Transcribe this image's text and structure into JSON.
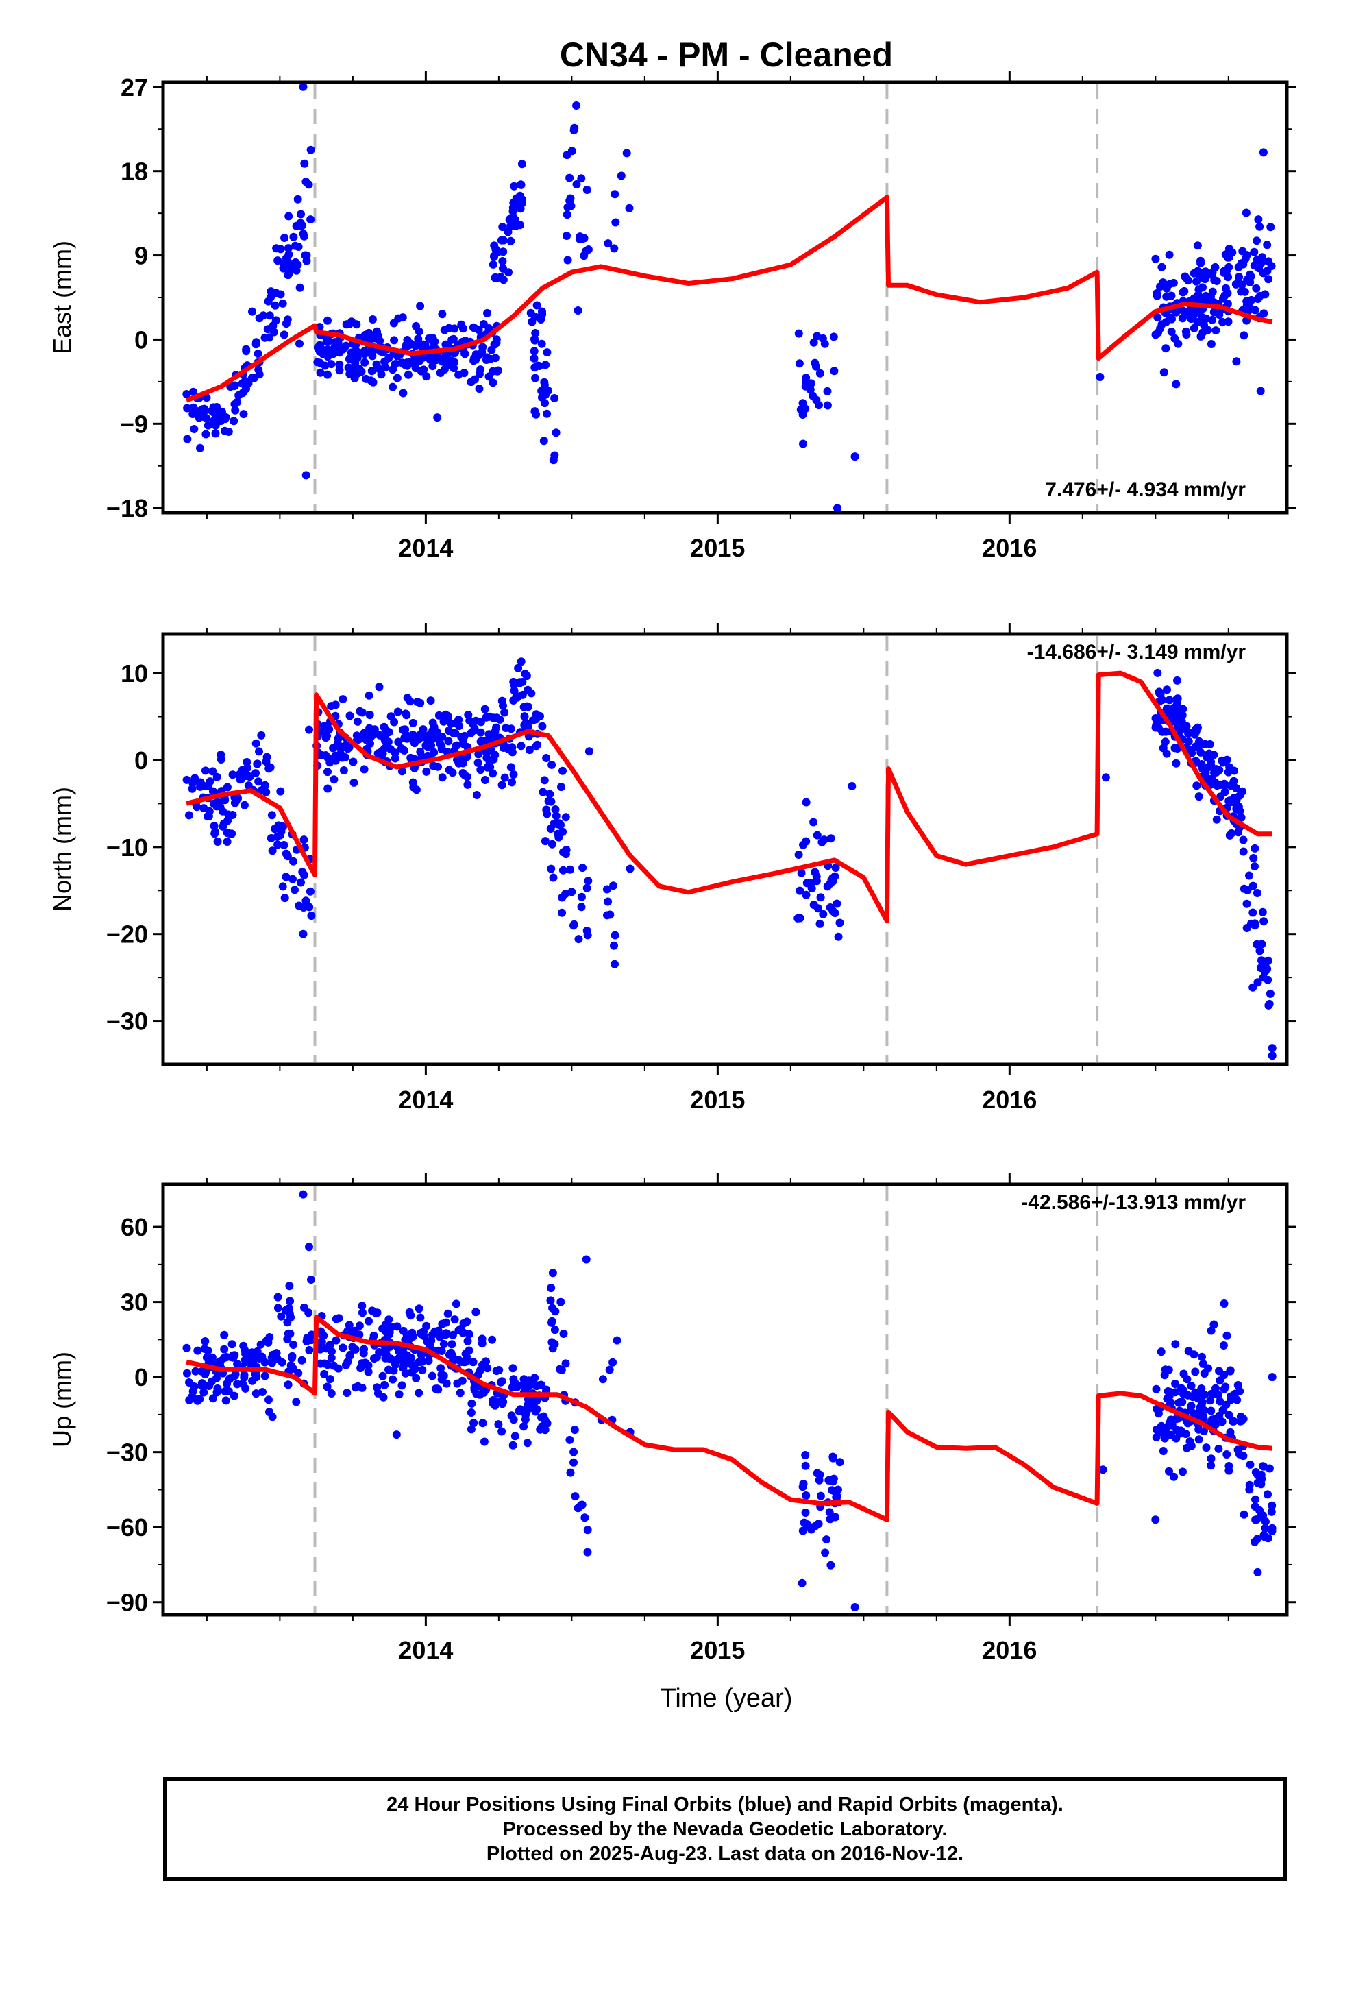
{
  "title": "CN34  - PM - Cleaned",
  "x_axis_label": "Time (year)",
  "footer": {
    "line1": "24 Hour Positions Using Final Orbits (blue) and Rapid Orbits (magenta).",
    "line2": "Processed by the Nevada Geodetic Laboratory.",
    "line3": "Plotted on 2025-Aug-23. Last data on 2016-Nov-12."
  },
  "colors": {
    "data_points": "#0000ff",
    "model_fit": "#ff0000",
    "event_lines": "#bbbbbb",
    "frame": "#000000"
  },
  "chart_data": [
    {
      "type": "scatter",
      "ylabel": "East (mm)",
      "rate_label": "7.476+/- 4.934 mm/yr",
      "xlim": [
        2013.1,
        2016.95
      ],
      "ylim": [
        -18.5,
        27.5
      ],
      "yticks": [
        27,
        18,
        9,
        0,
        -9,
        -18
      ],
      "xticks": [
        2014,
        2015,
        2016
      ],
      "event_lines": [
        2013.62,
        2015.58,
        2016.3
      ],
      "grid": false,
      "model_series": {
        "name": "model",
        "points": [
          [
            2013.18,
            -6.5
          ],
          [
            2013.3,
            -5
          ],
          [
            2013.42,
            -2.5
          ],
          [
            2013.54,
            0
          ],
          [
            2013.62,
            1.5
          ],
          [
            2013.625,
            0.8
          ],
          [
            2013.7,
            0.5
          ],
          [
            2013.8,
            -0.5
          ],
          [
            2013.95,
            -1.5
          ],
          [
            2014.1,
            -1
          ],
          [
            2014.2,
            0
          ],
          [
            2014.3,
            2.5
          ],
          [
            2014.4,
            5.5
          ],
          [
            2014.5,
            7.2
          ],
          [
            2014.6,
            7.8
          ],
          [
            2014.75,
            6.8
          ],
          [
            2014.9,
            6
          ],
          [
            2015.05,
            6.5
          ],
          [
            2015.25,
            8
          ],
          [
            2015.4,
            11
          ],
          [
            2015.58,
            15.2
          ],
          [
            2015.585,
            5.8
          ],
          [
            2015.65,
            5.8
          ],
          [
            2015.75,
            4.8
          ],
          [
            2015.9,
            4
          ],
          [
            2016.05,
            4.5
          ],
          [
            2016.2,
            5.5
          ],
          [
            2016.3,
            7.2
          ],
          [
            2016.305,
            -2
          ],
          [
            2016.4,
            0.5
          ],
          [
            2016.5,
            3
          ],
          [
            2016.6,
            3.8
          ],
          [
            2016.72,
            3.5
          ],
          [
            2016.85,
            2.2
          ],
          [
            2016.9,
            1.9
          ]
        ]
      },
      "data_series": [
        {
          "t0": 2013.18,
          "t1": 2013.33,
          "n": 40,
          "c0": -7,
          "c1": -9,
          "s": 1.3
        },
        {
          "t0": 2013.33,
          "t1": 2013.46,
          "n": 35,
          "c0": -7,
          "c1": 1,
          "s": 1.8
        },
        {
          "t0": 2013.46,
          "t1": 2013.61,
          "n": 55,
          "c0": 3,
          "c1": 14,
          "s": 2.8
        },
        {
          "t0": 2013.625,
          "t1": 2014.25,
          "n": 240,
          "c0": -1,
          "c1": -1.3,
          "s": 1.7
        },
        {
          "t0": 2014.23,
          "t1": 2014.33,
          "n": 45,
          "c0": 8,
          "c1": 15,
          "s": 1.8
        },
        {
          "t0": 2014.35,
          "t1": 2014.45,
          "n": 35,
          "c0": 1,
          "c1": -8,
          "s": 3.5
        },
        {
          "t0": 2014.48,
          "t1": 2014.52,
          "n": 14,
          "c0": 12,
          "c1": 22,
          "s": 3.5
        },
        {
          "t0": 2014.5,
          "t1": 2014.56,
          "n": 10,
          "c0": 8,
          "c1": 12,
          "s": 3
        },
        {
          "t0": 2014.6,
          "t1": 2014.7,
          "n": 6,
          "c0": 5,
          "c1": 18,
          "s": 4
        },
        {
          "t0": 2015.27,
          "t1": 2015.4,
          "n": 26,
          "c0": -6,
          "c1": -4,
          "s": 4
        },
        {
          "t0": 2016.31,
          "t1": 2016.32,
          "n": 1,
          "c0": -4,
          "c1": -4,
          "s": 0
        },
        {
          "t0": 2016.5,
          "t1": 2016.9,
          "n": 180,
          "c0": 2.5,
          "c1": 7,
          "s": 2.8
        }
      ],
      "outliers": [
        [
          2013.58,
          27
        ],
        [
          2013.59,
          -14.5
        ],
        [
          2015.41,
          -18
        ],
        [
          2015.47,
          -12.5
        ],
        [
          2014.67,
          17.5
        ],
        [
          2016.87,
          20
        ],
        [
          2016.86,
          -5.5
        ]
      ]
    },
    {
      "type": "scatter",
      "ylabel": "North (mm)",
      "rate_label": "-14.686+/- 3.149 mm/yr",
      "xlim": [
        2013.1,
        2016.95
      ],
      "ylim": [
        -35,
        14.5
      ],
      "yticks": [
        10,
        0,
        -10,
        -20,
        -30
      ],
      "xticks": [
        2014,
        2015,
        2016
      ],
      "event_lines": [
        2013.62,
        2015.58,
        2016.3
      ],
      "grid": false,
      "model_series": {
        "name": "model",
        "points": [
          [
            2013.18,
            -5
          ],
          [
            2013.3,
            -4
          ],
          [
            2013.4,
            -3.5
          ],
          [
            2013.5,
            -5.5
          ],
          [
            2013.6,
            -12
          ],
          [
            2013.62,
            -13.2
          ],
          [
            2013.625,
            7.5
          ],
          [
            2013.7,
            3.5
          ],
          [
            2013.8,
            0.5
          ],
          [
            2013.9,
            -0.8
          ],
          [
            2014.05,
            0.2
          ],
          [
            2014.2,
            1.5
          ],
          [
            2014.35,
            3.3
          ],
          [
            2014.42,
            2.8
          ],
          [
            2014.5,
            -1
          ],
          [
            2014.6,
            -6
          ],
          [
            2014.7,
            -11
          ],
          [
            2014.8,
            -14.5
          ],
          [
            2014.9,
            -15.2
          ],
          [
            2015.05,
            -14
          ],
          [
            2015.2,
            -13
          ],
          [
            2015.4,
            -11.5
          ],
          [
            2015.5,
            -13.5
          ],
          [
            2015.58,
            -18.5
          ],
          [
            2015.585,
            -1
          ],
          [
            2015.65,
            -6
          ],
          [
            2015.75,
            -11
          ],
          [
            2015.85,
            -12
          ],
          [
            2016.0,
            -11
          ],
          [
            2016.15,
            -10
          ],
          [
            2016.3,
            -8.5
          ],
          [
            2016.305,
            9.8
          ],
          [
            2016.38,
            10
          ],
          [
            2016.45,
            9
          ],
          [
            2016.55,
            4
          ],
          [
            2016.65,
            -2
          ],
          [
            2016.75,
            -6.5
          ],
          [
            2016.85,
            -8.5
          ],
          [
            2016.9,
            -8.5
          ]
        ]
      },
      "data_series": [
        {
          "t0": 2013.18,
          "t1": 2013.35,
          "n": 55,
          "c0": -4,
          "c1": -6,
          "s": 2
        },
        {
          "t0": 2013.35,
          "t1": 2013.47,
          "n": 30,
          "c0": -4,
          "c1": 0.5,
          "s": 2
        },
        {
          "t0": 2013.47,
          "t1": 2013.61,
          "n": 35,
          "c0": -8,
          "c1": -15,
          "s": 3
        },
        {
          "t0": 2013.625,
          "t1": 2014.3,
          "n": 260,
          "c0": 2,
          "c1": 2,
          "s": 2.2
        },
        {
          "t0": 2014.3,
          "t1": 2014.4,
          "n": 40,
          "c0": 6,
          "c1": 4,
          "s": 3
        },
        {
          "t0": 2014.4,
          "t1": 2014.5,
          "n": 35,
          "c0": -2,
          "c1": -13,
          "s": 4
        },
        {
          "t0": 2014.5,
          "t1": 2014.56,
          "n": 10,
          "c0": -16,
          "c1": -20,
          "s": 4
        },
        {
          "t0": 2014.62,
          "t1": 2014.65,
          "n": 8,
          "c0": -17,
          "c1": -19,
          "s": 2.5
        },
        {
          "t0": 2015.27,
          "t1": 2015.42,
          "n": 40,
          "c0": -12,
          "c1": -13,
          "s": 3
        },
        {
          "t0": 2016.5,
          "t1": 2016.6,
          "n": 55,
          "c0": 6,
          "c1": 4,
          "s": 2.5
        },
        {
          "t0": 2016.6,
          "t1": 2016.8,
          "n": 90,
          "c0": 2,
          "c1": -6,
          "s": 2.3
        },
        {
          "t0": 2016.8,
          "t1": 2016.9,
          "n": 35,
          "c0": -12,
          "c1": -28,
          "s": 4
        }
      ],
      "outliers": [
        [
          2014.56,
          1
        ],
        [
          2014.7,
          -12.5
        ],
        [
          2015.46,
          -3
        ],
        [
          2016.33,
          -2
        ],
        [
          2013.6,
          3.5
        ],
        [
          2013.58,
          -20
        ],
        [
          2016.9,
          -34
        ]
      ]
    },
    {
      "type": "scatter",
      "ylabel": "Up (mm)",
      "rate_label": "-42.586+/-13.913 mm/yr",
      "xlim": [
        2013.1,
        2016.95
      ],
      "ylim": [
        -95,
        77
      ],
      "yticks": [
        60,
        30,
        0,
        -30,
        -60,
        -90
      ],
      "xticks": [
        2014,
        2015,
        2016
      ],
      "event_lines": [
        2013.62,
        2015.58,
        2016.3
      ],
      "grid": false,
      "model_series": {
        "name": "model",
        "points": [
          [
            2013.18,
            6
          ],
          [
            2013.3,
            3
          ],
          [
            2013.45,
            3
          ],
          [
            2013.55,
            0
          ],
          [
            2013.62,
            -6.5
          ],
          [
            2013.625,
            24
          ],
          [
            2013.7,
            17
          ],
          [
            2013.8,
            14
          ],
          [
            2013.9,
            13.5
          ],
          [
            2014.0,
            11
          ],
          [
            2014.1,
            4
          ],
          [
            2014.2,
            -3
          ],
          [
            2014.3,
            -7
          ],
          [
            2014.45,
            -7
          ],
          [
            2014.55,
            -12
          ],
          [
            2014.65,
            -20
          ],
          [
            2014.75,
            -27
          ],
          [
            2014.85,
            -29
          ],
          [
            2014.95,
            -29
          ],
          [
            2015.05,
            -33
          ],
          [
            2015.15,
            -42
          ],
          [
            2015.25,
            -49
          ],
          [
            2015.35,
            -50.5
          ],
          [
            2015.45,
            -50
          ],
          [
            2015.58,
            -57
          ],
          [
            2015.585,
            -14
          ],
          [
            2015.65,
            -22
          ],
          [
            2015.75,
            -28
          ],
          [
            2015.85,
            -28.5
          ],
          [
            2015.95,
            -28
          ],
          [
            2016.05,
            -35
          ],
          [
            2016.15,
            -44
          ],
          [
            2016.3,
            -50.5
          ],
          [
            2016.305,
            -7.5
          ],
          [
            2016.38,
            -6.5
          ],
          [
            2016.45,
            -7.5
          ],
          [
            2016.55,
            -13
          ],
          [
            2016.65,
            -18
          ],
          [
            2016.75,
            -25
          ],
          [
            2016.85,
            -28
          ],
          [
            2016.9,
            -28.5
          ]
        ]
      },
      "data_series": [
        {
          "t0": 2013.18,
          "t1": 2013.45,
          "n": 90,
          "c0": 2,
          "c1": 5,
          "s": 7
        },
        {
          "t0": 2013.45,
          "t1": 2013.61,
          "n": 45,
          "c0": 10,
          "c1": 25,
          "s": 14
        },
        {
          "t0": 2013.625,
          "t1": 2014.15,
          "n": 210,
          "c0": 10,
          "c1": 10,
          "s": 8
        },
        {
          "t0": 2014.15,
          "t1": 2014.42,
          "n": 100,
          "c0": -5,
          "c1": -10,
          "s": 8
        },
        {
          "t0": 2014.42,
          "t1": 2014.52,
          "n": 25,
          "c0": 25,
          "c1": -20,
          "s": 14
        },
        {
          "t0": 2014.52,
          "t1": 2014.56,
          "n": 6,
          "c0": -50,
          "c1": -65,
          "s": 8
        },
        {
          "t0": 2014.6,
          "t1": 2014.66,
          "n": 6,
          "c0": -15,
          "c1": 20,
          "s": 12
        },
        {
          "t0": 2015.28,
          "t1": 2015.42,
          "n": 40,
          "c0": -55,
          "c1": -50,
          "s": 14
        },
        {
          "t0": 2016.5,
          "t1": 2016.8,
          "n": 150,
          "c0": -15,
          "c1": -12,
          "s": 11
        },
        {
          "t0": 2016.8,
          "t1": 2016.9,
          "n": 35,
          "c0": -40,
          "c1": -55,
          "s": 13
        }
      ],
      "outliers": [
        [
          2013.58,
          73
        ],
        [
          2014.55,
          47
        ],
        [
          2014.7,
          -22
        ],
        [
          2015.47,
          -92
        ],
        [
          2016.32,
          -37
        ],
        [
          2016.5,
          -57
        ],
        [
          2016.85,
          -78
        ],
        [
          2016.7,
          21
        ],
        [
          2013.9,
          -23
        ],
        [
          2016.9,
          0
        ]
      ]
    }
  ]
}
